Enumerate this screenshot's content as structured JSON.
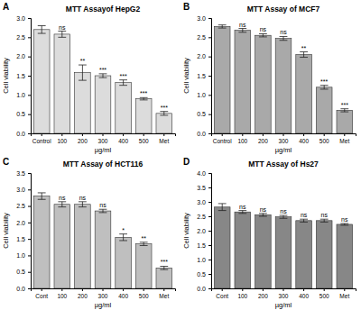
{
  "chart_data": [
    {
      "type": "bar",
      "panel_label": "A",
      "title": "MTT Assayof HepG2",
      "xlabel": "µg/ml",
      "ylabel": "Cell viability",
      "categories": [
        "Control",
        "100",
        "200",
        "300",
        "400",
        "500",
        "Met"
      ],
      "values": [
        2.7,
        2.58,
        1.58,
        1.5,
        1.32,
        0.9,
        0.52
      ],
      "errors": [
        0.1,
        0.08,
        0.2,
        0.05,
        0.07,
        0.03,
        0.05
      ],
      "annotations": [
        null,
        "ns",
        "**",
        "***",
        "***",
        "***",
        "***"
      ],
      "color": "#dcdcdc",
      "ylim": [
        0,
        3
      ],
      "yticks": [
        {
          "value": 0,
          "label": "0.0"
        },
        0.5,
        {
          "value": 1,
          "label": "1.0"
        },
        1.5,
        {
          "value": 2,
          "label": "2.0"
        },
        2.5,
        {
          "value": 3,
          "label": "3.0"
        }
      ]
    },
    {
      "type": "bar",
      "panel_label": "B",
      "title": "MTT Assay of MCF7",
      "xlabel": "µg/ml",
      "ylabel": "Cell viability",
      "categories": [
        "Control",
        "100",
        "200",
        "300",
        "400",
        "500",
        "Met"
      ],
      "values": [
        2.78,
        2.68,
        2.55,
        2.47,
        2.05,
        1.2,
        0.6
      ],
      "errors": [
        0.04,
        0.05,
        0.04,
        0.05,
        0.07,
        0.05,
        0.04
      ],
      "annotations": [
        null,
        "ns",
        "ns",
        "ns",
        "**",
        "***",
        "***"
      ],
      "color": "#a9a9a9",
      "ylim": [
        0,
        3
      ],
      "yticks": [
        {
          "value": 0,
          "label": "0.0"
        },
        0.5,
        {
          "value": 1,
          "label": "1.0"
        },
        1.5,
        {
          "value": 2,
          "label": "2.0"
        },
        2.5,
        {
          "value": 3,
          "label": "3.0"
        }
      ]
    },
    {
      "type": "bar",
      "panel_label": "C",
      "title": "MTT Assay of HCT116",
      "xlabel": "µg/ml",
      "ylabel": "Cell viability",
      "categories": [
        "Cont",
        "100",
        "200",
        "300",
        "400",
        "500",
        "Met"
      ],
      "values": [
        2.8,
        2.55,
        2.55,
        2.35,
        1.55,
        1.35,
        0.62
      ],
      "errors": [
        0.1,
        0.08,
        0.08,
        0.05,
        0.1,
        0.05,
        0.05
      ],
      "annotations": [
        null,
        "ns",
        "ns",
        "ns",
        "*",
        "**",
        "***"
      ],
      "color": "#bfbfbf",
      "ylim": [
        0,
        3.5
      ],
      "yticks": [
        {
          "value": 0,
          "label": "0.0"
        },
        0.5,
        {
          "value": 1,
          "label": "1.0"
        },
        1.5,
        {
          "value": 2,
          "label": "2.0"
        },
        2.5,
        {
          "value": 3,
          "label": "3.0"
        },
        3.5
      ]
    },
    {
      "type": "bar",
      "panel_label": "D",
      "title": "MTT Assay of Hs27",
      "xlabel": "µg/ml",
      "ylabel": "Cell viability",
      "categories": [
        "Cont",
        "100",
        "200",
        "300",
        "400",
        "500",
        "Met"
      ],
      "values": [
        2.82,
        2.65,
        2.55,
        2.48,
        2.35,
        2.35,
        2.22
      ],
      "errors": [
        0.12,
        0.05,
        0.05,
        0.05,
        0.05,
        0.05,
        0.03
      ],
      "annotations": [
        null,
        "ns",
        "ns",
        "ns",
        "ns",
        "ns",
        "ns"
      ],
      "color": "#878787",
      "ylim": [
        0,
        4
      ],
      "yticks": [
        {
          "value": 0,
          "label": "0.0"
        },
        0.5,
        {
          "value": 1,
          "label": "1.0"
        },
        1.5,
        {
          "value": 2,
          "label": "2.0"
        },
        2.5,
        {
          "value": 3,
          "label": "3.0"
        },
        3.5,
        {
          "value": 4,
          "label": "4.0"
        }
      ]
    }
  ]
}
